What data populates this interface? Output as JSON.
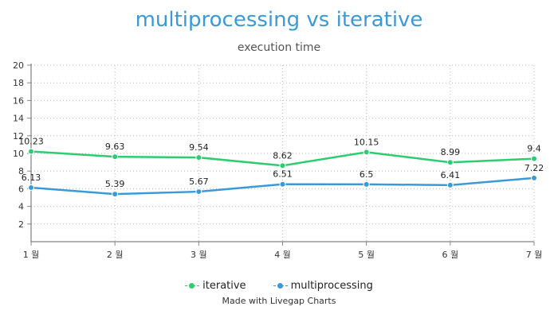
{
  "chart_data": {
    "type": "line",
    "title": "multiprocessing vs iterative",
    "subtitle": "execution time",
    "categories": [
      "1 월",
      "2 월",
      "3 월",
      "4 월",
      "5 월",
      "6 월",
      "7 월"
    ],
    "yticks": [
      2,
      4,
      6,
      8,
      10,
      12,
      14,
      16,
      18,
      20
    ],
    "ylim": [
      0,
      20
    ],
    "grid": true,
    "legend_position": "bottom",
    "series": [
      {
        "name": "iterative",
        "color": "#2ecc71",
        "values": [
          10.23,
          9.63,
          9.54,
          8.62,
          10.15,
          8.99,
          9.4
        ]
      },
      {
        "name": "multiprocessing",
        "color": "#3a9ad9",
        "values": [
          6.13,
          5.39,
          5.67,
          6.51,
          6.5,
          6.41,
          7.22
        ]
      }
    ],
    "footer": "Made with Livegap Charts"
  }
}
